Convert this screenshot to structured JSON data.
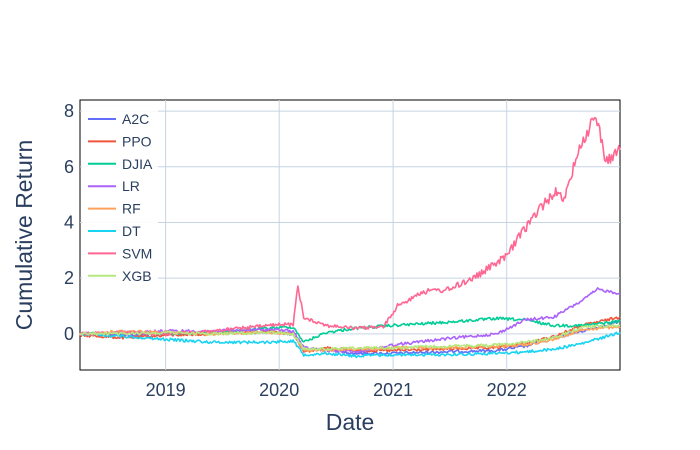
{
  "chart_data": {
    "type": "line",
    "title": "",
    "xlabel": "Date",
    "ylabel": "Cumulative Return",
    "xlim": [
      "2018-04-01",
      "2022-12-31"
    ],
    "ylim": [
      -1.3,
      8.4
    ],
    "x_ticks": [
      "2019",
      "2020",
      "2021",
      "2022"
    ],
    "y_ticks": [
      0,
      2,
      4,
      6,
      8
    ],
    "grid": true,
    "legend_position": "top-left",
    "series": [
      {
        "name": "A2C",
        "color": "#636efa",
        "points": [
          [
            "2018-04-01",
            0.0
          ],
          [
            "2018-09-01",
            -0.05
          ],
          [
            "2019-01-01",
            0.0
          ],
          [
            "2019-06-01",
            0.05
          ],
          [
            "2019-12-01",
            0.05
          ],
          [
            "2020-02-15",
            0.0
          ],
          [
            "2020-03-20",
            -0.6
          ],
          [
            "2020-06-01",
            -0.55
          ],
          [
            "2020-09-01",
            -0.7
          ],
          [
            "2021-01-01",
            -0.7
          ],
          [
            "2021-06-01",
            -0.65
          ],
          [
            "2021-12-01",
            -0.6
          ],
          [
            "2022-03-01",
            -0.45
          ],
          [
            "2022-06-01",
            -0.15
          ],
          [
            "2022-09-01",
            0.1
          ],
          [
            "2022-12-31",
            0.45
          ]
        ]
      },
      {
        "name": "PPO",
        "color": "#ef553b",
        "points": [
          [
            "2018-04-01",
            -0.05
          ],
          [
            "2018-09-01",
            -0.15
          ],
          [
            "2019-01-01",
            -0.05
          ],
          [
            "2019-06-01",
            0.0
          ],
          [
            "2019-12-01",
            0.1
          ],
          [
            "2020-02-15",
            0.0
          ],
          [
            "2020-03-20",
            -0.65
          ],
          [
            "2020-06-01",
            -0.5
          ],
          [
            "2020-09-01",
            -0.6
          ],
          [
            "2021-01-01",
            -0.6
          ],
          [
            "2021-06-01",
            -0.55
          ],
          [
            "2021-12-01",
            -0.5
          ],
          [
            "2022-03-01",
            -0.35
          ],
          [
            "2022-06-01",
            -0.1
          ],
          [
            "2022-09-01",
            0.3
          ],
          [
            "2022-12-31",
            0.6
          ]
        ]
      },
      {
        "name": "DJIA",
        "color": "#00cc96",
        "points": [
          [
            "2018-04-01",
            0.0
          ],
          [
            "2018-09-01",
            0.05
          ],
          [
            "2019-01-01",
            0.0
          ],
          [
            "2019-06-01",
            0.05
          ],
          [
            "2019-12-01",
            0.2
          ],
          [
            "2020-02-15",
            0.25
          ],
          [
            "2020-03-20",
            -0.3
          ],
          [
            "2020-06-01",
            0.05
          ],
          [
            "2020-09-01",
            0.2
          ],
          [
            "2021-01-01",
            0.3
          ],
          [
            "2021-06-01",
            0.4
          ],
          [
            "2021-12-01",
            0.55
          ],
          [
            "2022-03-01",
            0.5
          ],
          [
            "2022-06-01",
            0.3
          ],
          [
            "2022-09-01",
            0.3
          ],
          [
            "2022-12-31",
            0.45
          ]
        ]
      },
      {
        "name": "LR",
        "color": "#ab63fa",
        "points": [
          [
            "2018-04-01",
            0.0
          ],
          [
            "2018-09-01",
            0.05
          ],
          [
            "2019-01-01",
            0.1
          ],
          [
            "2019-06-01",
            0.1
          ],
          [
            "2019-12-01",
            0.15
          ],
          [
            "2020-02-15",
            0.1
          ],
          [
            "2020-03-20",
            -0.5
          ],
          [
            "2020-06-01",
            -0.6
          ],
          [
            "2020-09-01",
            -0.65
          ],
          [
            "2021-01-01",
            -0.4
          ],
          [
            "2021-06-01",
            -0.2
          ],
          [
            "2021-12-01",
            0.0
          ],
          [
            "2022-03-01",
            0.5
          ],
          [
            "2022-06-01",
            0.6
          ],
          [
            "2022-09-01",
            1.2
          ],
          [
            "2022-10-20",
            1.6
          ],
          [
            "2022-12-31",
            1.45
          ]
        ]
      },
      {
        "name": "RF",
        "color": "#ffa15a",
        "points": [
          [
            "2018-04-01",
            0.0
          ],
          [
            "2018-09-01",
            0.1
          ],
          [
            "2019-01-01",
            0.05
          ],
          [
            "2019-06-01",
            0.0
          ],
          [
            "2019-12-01",
            0.05
          ],
          [
            "2020-02-15",
            0.0
          ],
          [
            "2020-03-20",
            -0.6
          ],
          [
            "2020-06-01",
            -0.6
          ],
          [
            "2020-09-01",
            -0.55
          ],
          [
            "2021-01-01",
            -0.5
          ],
          [
            "2021-06-01",
            -0.5
          ],
          [
            "2021-12-01",
            -0.45
          ],
          [
            "2022-03-01",
            -0.4
          ],
          [
            "2022-06-01",
            -0.2
          ],
          [
            "2022-09-01",
            0.15
          ],
          [
            "2022-12-31",
            0.25
          ]
        ]
      },
      {
        "name": "DT",
        "color": "#19d3f3",
        "points": [
          [
            "2018-04-01",
            0.0
          ],
          [
            "2018-09-01",
            -0.1
          ],
          [
            "2019-01-01",
            -0.2
          ],
          [
            "2019-06-01",
            -0.3
          ],
          [
            "2019-12-01",
            -0.3
          ],
          [
            "2020-02-15",
            -0.25
          ],
          [
            "2020-03-20",
            -0.75
          ],
          [
            "2020-06-01",
            -0.7
          ],
          [
            "2020-09-01",
            -0.8
          ],
          [
            "2021-01-01",
            -0.75
          ],
          [
            "2021-06-01",
            -0.75
          ],
          [
            "2021-12-01",
            -0.7
          ],
          [
            "2022-03-01",
            -0.65
          ],
          [
            "2022-06-01",
            -0.55
          ],
          [
            "2022-09-01",
            -0.35
          ],
          [
            "2022-12-31",
            0.05
          ]
        ]
      },
      {
        "name": "SVM",
        "color": "#ff6692",
        "points": [
          [
            "2018-04-01",
            0.0
          ],
          [
            "2018-09-01",
            0.05
          ],
          [
            "2019-01-01",
            0.0
          ],
          [
            "2019-06-01",
            0.1
          ],
          [
            "2019-12-01",
            0.3
          ],
          [
            "2020-02-15",
            0.35
          ],
          [
            "2020-03-01",
            1.7
          ],
          [
            "2020-03-20",
            0.6
          ],
          [
            "2020-06-01",
            0.3
          ],
          [
            "2020-09-01",
            0.2
          ],
          [
            "2020-12-01",
            0.25
          ],
          [
            "2021-01-15",
            1.0
          ],
          [
            "2021-04-01",
            1.5
          ],
          [
            "2021-07-01",
            1.6
          ],
          [
            "2021-10-01",
            2.1
          ],
          [
            "2022-01-01",
            2.8
          ],
          [
            "2022-03-01",
            3.8
          ],
          [
            "2022-05-01",
            4.7
          ],
          [
            "2022-06-15",
            5.2
          ],
          [
            "2022-07-01",
            4.6
          ],
          [
            "2022-08-15",
            6.5
          ],
          [
            "2022-09-20",
            7.3
          ],
          [
            "2022-10-15",
            7.9
          ],
          [
            "2022-11-15",
            6.2
          ],
          [
            "2022-12-31",
            6.6
          ]
        ]
      },
      {
        "name": "XGB",
        "color": "#b6e880",
        "points": [
          [
            "2018-04-01",
            0.0
          ],
          [
            "2018-09-01",
            0.0
          ],
          [
            "2019-01-01",
            0.05
          ],
          [
            "2019-06-01",
            0.0
          ],
          [
            "2019-12-01",
            0.05
          ],
          [
            "2020-02-15",
            0.0
          ],
          [
            "2020-03-20",
            -0.55
          ],
          [
            "2020-06-01",
            -0.55
          ],
          [
            "2020-09-01",
            -0.5
          ],
          [
            "2021-01-01",
            -0.5
          ],
          [
            "2021-06-01",
            -0.45
          ],
          [
            "2021-12-01",
            -0.4
          ],
          [
            "2022-03-01",
            -0.3
          ],
          [
            "2022-06-01",
            -0.15
          ],
          [
            "2022-09-01",
            0.25
          ],
          [
            "2022-12-31",
            0.3
          ]
        ]
      }
    ]
  }
}
